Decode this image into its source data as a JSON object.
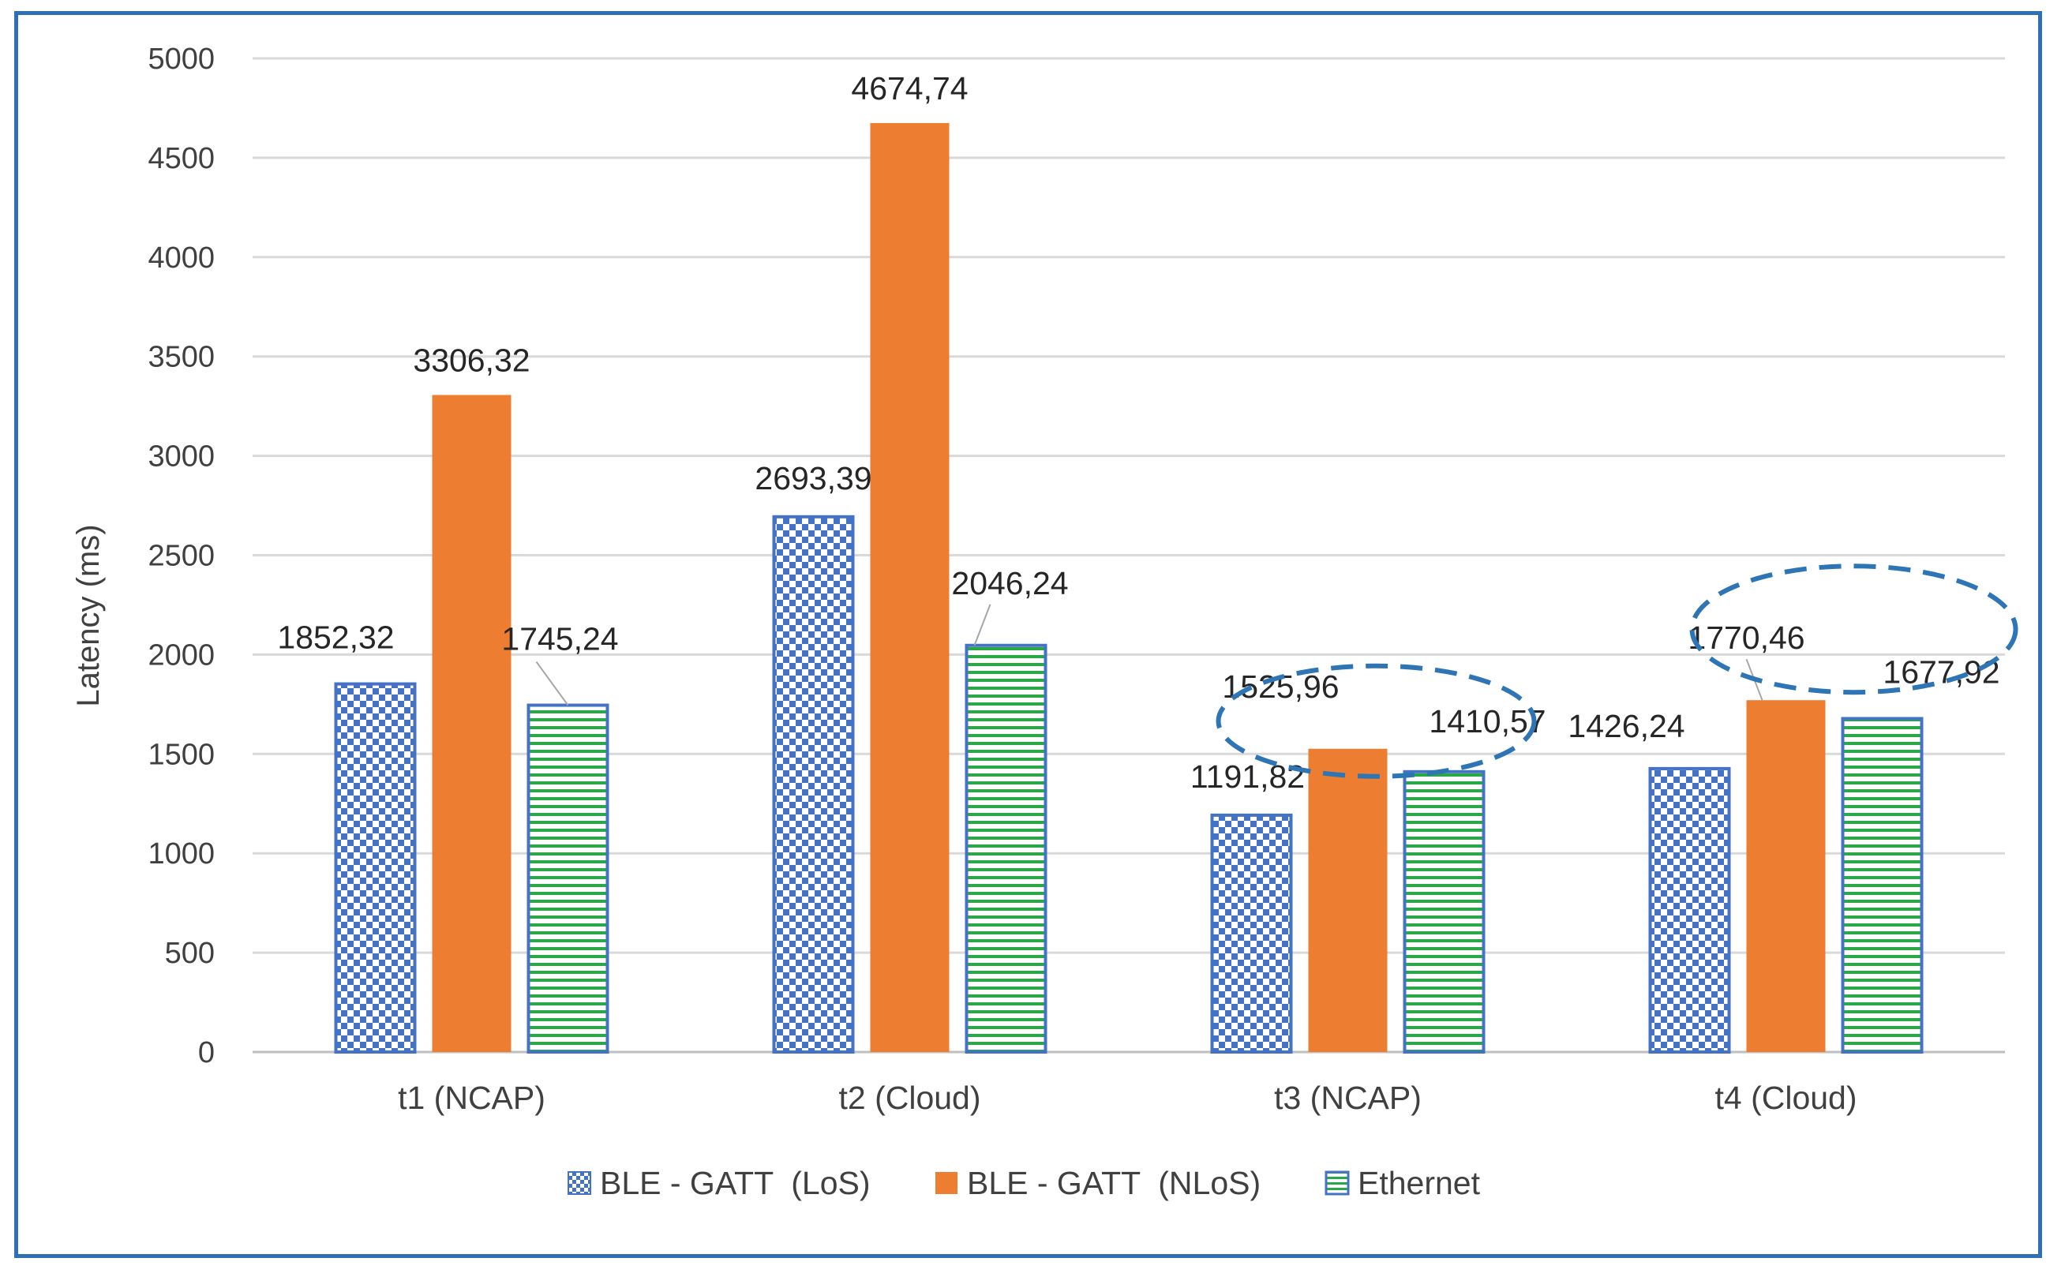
{
  "chart_data": {
    "type": "bar",
    "title": "",
    "xlabel": "",
    "ylabel": "Latency (ms)",
    "ylim": [
      0,
      5000
    ],
    "yticks": [
      0,
      500,
      1000,
      1500,
      2000,
      2500,
      3000,
      3500,
      4000,
      4500,
      5000
    ],
    "grid": true,
    "legend_position": "bottom",
    "categories": [
      "t1 (NCAP)",
      "t2 (Cloud)",
      "t3 (NCAP)",
      "t4 (Cloud)"
    ],
    "series": [
      {
        "name": "BLE - GATT  (LoS)",
        "values": [
          1852.32,
          2693.39,
          1191.82,
          1426.24
        ],
        "labels": [
          "1852,32",
          "2693,39",
          "1191,82",
          "1426,24"
        ],
        "color": "#4472c4",
        "pattern": "checkerboard"
      },
      {
        "name": "BLE - GATT  (NLoS)",
        "values": [
          3306.32,
          4674.74,
          1525.96,
          1770.46
        ],
        "labels": [
          "3306,32",
          "4674,74",
          "1525,96",
          "1770,46"
        ],
        "color": "#ed7d31",
        "pattern": "solid"
      },
      {
        "name": "Ethernet",
        "values": [
          1745.24,
          2046.24,
          1410.57,
          1677.92
        ],
        "labels": [
          "1745,24",
          "2046,24",
          "1410,57",
          "1677,92"
        ],
        "color": "#2aa845",
        "border_color": "#4472c4",
        "pattern": "horizontal-stripes"
      }
    ],
    "annotations": [
      {
        "type": "dashed-ellipse",
        "category": "t3 (NCAP)",
        "color": "#2e75b6"
      },
      {
        "type": "dashed-ellipse",
        "category": "t4 (Cloud)",
        "color": "#2e75b6"
      }
    ]
  }
}
